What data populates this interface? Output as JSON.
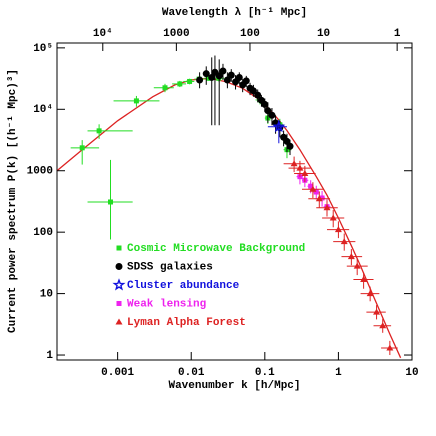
{
  "chart_data": {
    "type": "scatter",
    "xlabel": "Wavenumber k [h/Mpc]",
    "ylabel": "Current power spectrum P(k) [(h⁻¹ Mpc)³]",
    "x2label": "Wavelength λ [h⁻¹ Mpc]",
    "log_x": true,
    "log_y": true,
    "xlim": [
      0.00015,
      10
    ],
    "ylim": [
      0.83,
      120000
    ],
    "xticks": [
      0.001,
      0.01,
      0.1,
      1,
      10
    ],
    "yticks": [
      1,
      10,
      100,
      1000,
      {
        "value": 10000,
        "label": "10⁴"
      },
      {
        "value": 100000,
        "label": "10⁵"
      }
    ],
    "x2ticks": [
      {
        "value": 10000,
        "label": "10⁴"
      },
      1000,
      100,
      10,
      1
    ],
    "series": [
      {
        "name": "Cosmic Microwave Background",
        "color": "#22dd22",
        "marker": "square",
        "x": [
          0.0008,
          0.00033,
          0.00056,
          0.0018,
          0.0044,
          0.007,
          0.0095,
          0.0128,
          0.0174,
          0.0236,
          0.086,
          0.11,
          0.16,
          0.2
        ],
        "values": [
          310,
          2360,
          4460,
          13700,
          22400,
          25900,
          28400,
          31000,
          32000,
          32000,
          14200,
          7200,
          5600,
          2200
        ],
        "ylo": [
          76,
          1260,
          3300,
          11000,
          19000,
          23000,
          25500,
          28000,
          29000,
          28500,
          12000,
          5800,
          4300,
          1600
        ],
        "yhi": [
          1500,
          3150,
          5700,
          16500,
          26000,
          29000,
          31500,
          34000,
          35000,
          35500,
          16500,
          8800,
          7000,
          2800
        ],
        "xlo": [
          0.00039,
          0.00023,
          0.00039,
          0.00088,
          0.0031,
          0.0055,
          0.0078,
          0.011,
          0.015,
          0.02,
          0.075,
          0.1,
          0.14,
          0.18
        ],
        "xhi": [
          0.0016,
          0.00056,
          0.0016,
          0.0037,
          0.0058,
          0.0085,
          0.011,
          0.015,
          0.02,
          0.028,
          0.1,
          0.125,
          0.18,
          0.23
        ]
      },
      {
        "name": "SDSS galaxies",
        "color": "#000000",
        "marker": "circle",
        "x": [
          0.013,
          0.016,
          0.019,
          0.021,
          0.024,
          0.027,
          0.031,
          0.035,
          0.04,
          0.045,
          0.05,
          0.056,
          0.063,
          0.07,
          0.08,
          0.09,
          0.1,
          0.11,
          0.125,
          0.14,
          0.16,
          0.18,
          0.2,
          0.22
        ],
        "values": [
          30000,
          38000,
          33000,
          40000,
          35000,
          42000,
          30000,
          36000,
          28000,
          33000,
          25000,
          29000,
          22000,
          20000,
          17000,
          14000,
          12000,
          9500,
          8000,
          6000,
          5000,
          3500,
          3000,
          2500
        ],
        "ylo": [
          22000,
          25000,
          5500,
          5500,
          5500,
          30000,
          22000,
          28000,
          21000,
          26000,
          19000,
          23000,
          17000,
          16000,
          13000,
          11000,
          9000,
          6000,
          5500,
          4000,
          3500,
          2500,
          2000,
          1800
        ],
        "yhi": [
          40000,
          50000,
          70000,
          75000,
          65000,
          55000,
          40000,
          45000,
          36000,
          40000,
          31000,
          35000,
          27000,
          25000,
          21000,
          17000,
          15000,
          13000,
          10500,
          8000,
          6500,
          4500,
          4000,
          3200
        ]
      },
      {
        "name": "Cluster abundance",
        "color": "#1111dd",
        "marker": "star",
        "x": [
          0.155
        ],
        "values": [
          5200
        ],
        "ylo": [
          2800
        ],
        "yhi": [
          6700
        ],
        "xlo": [
          0.11
        ],
        "xhi": [
          0.2
        ]
      },
      {
        "name": "Weak lensing",
        "color": "#ee22ee",
        "marker": "square",
        "x": [
          0.3,
          0.35,
          0.42,
          0.5,
          0.6,
          0.7
        ],
        "values": [
          800,
          700,
          560,
          450,
          360,
          260
        ],
        "ylo": [
          600,
          540,
          430,
          340,
          260,
          180
        ],
        "yhi": [
          1000,
          880,
          700,
          570,
          470,
          350
        ],
        "xlo": [
          0.27,
          0.32,
          0.38,
          0.45,
          0.54,
          0.63
        ],
        "xhi": [
          0.33,
          0.39,
          0.46,
          0.56,
          0.66,
          0.78
        ]
      },
      {
        "name": "Lyman Alpha Forest",
        "color": "#dd2222",
        "marker": "triangle",
        "x": [
          0.25,
          0.3,
          0.35,
          0.45,
          0.55,
          0.7,
          0.85,
          1.0,
          1.2,
          1.5,
          1.8,
          2.2,
          2.7,
          3.3,
          4.0,
          5.0
        ],
        "values": [
          1300,
          1100,
          900,
          500,
          350,
          250,
          170,
          110,
          70,
          40,
          28,
          17,
          10,
          5,
          3,
          1.3
        ],
        "ylo": [
          950,
          800,
          650,
          360,
          250,
          180,
          120,
          80,
          50,
          29,
          20,
          12,
          7.5,
          3.8,
          2.3,
          1.0
        ],
        "yhi": [
          1700,
          1450,
          1200,
          650,
          460,
          330,
          230,
          150,
          95,
          53,
          37,
          22,
          13,
          6.5,
          3.9,
          1.7
        ],
        "xlo": [
          0.18,
          0.21,
          0.25,
          0.32,
          0.39,
          0.5,
          0.6,
          0.7,
          0.85,
          1.1,
          1.3,
          1.6,
          2.0,
          2.4,
          3.0,
          3.8
        ],
        "xhi": [
          0.35,
          0.42,
          0.49,
          0.63,
          0.77,
          0.98,
          1.2,
          1.4,
          1.7,
          2.1,
          2.5,
          3.0,
          3.6,
          4.4,
          5.2,
          6.4
        ]
      }
    ],
    "model": {
      "color": "#dd2222",
      "x": [
        0.00015,
        0.0003,
        0.001,
        0.003,
        0.006,
        0.01,
        0.015,
        0.02,
        0.03,
        0.05,
        0.08,
        0.1,
        0.15,
        0.2,
        0.3,
        0.5,
        0.7,
        1,
        1.5,
        2,
        3,
        5,
        7
      ],
      "values": [
        1000,
        2000,
        6500,
        16000,
        25000,
        30000,
        31500,
        31000,
        28000,
        22000,
        15000,
        12000,
        7000,
        4500,
        2200,
        800,
        400,
        170,
        60,
        28,
        9,
        2.2,
        0.9
      ]
    }
  }
}
